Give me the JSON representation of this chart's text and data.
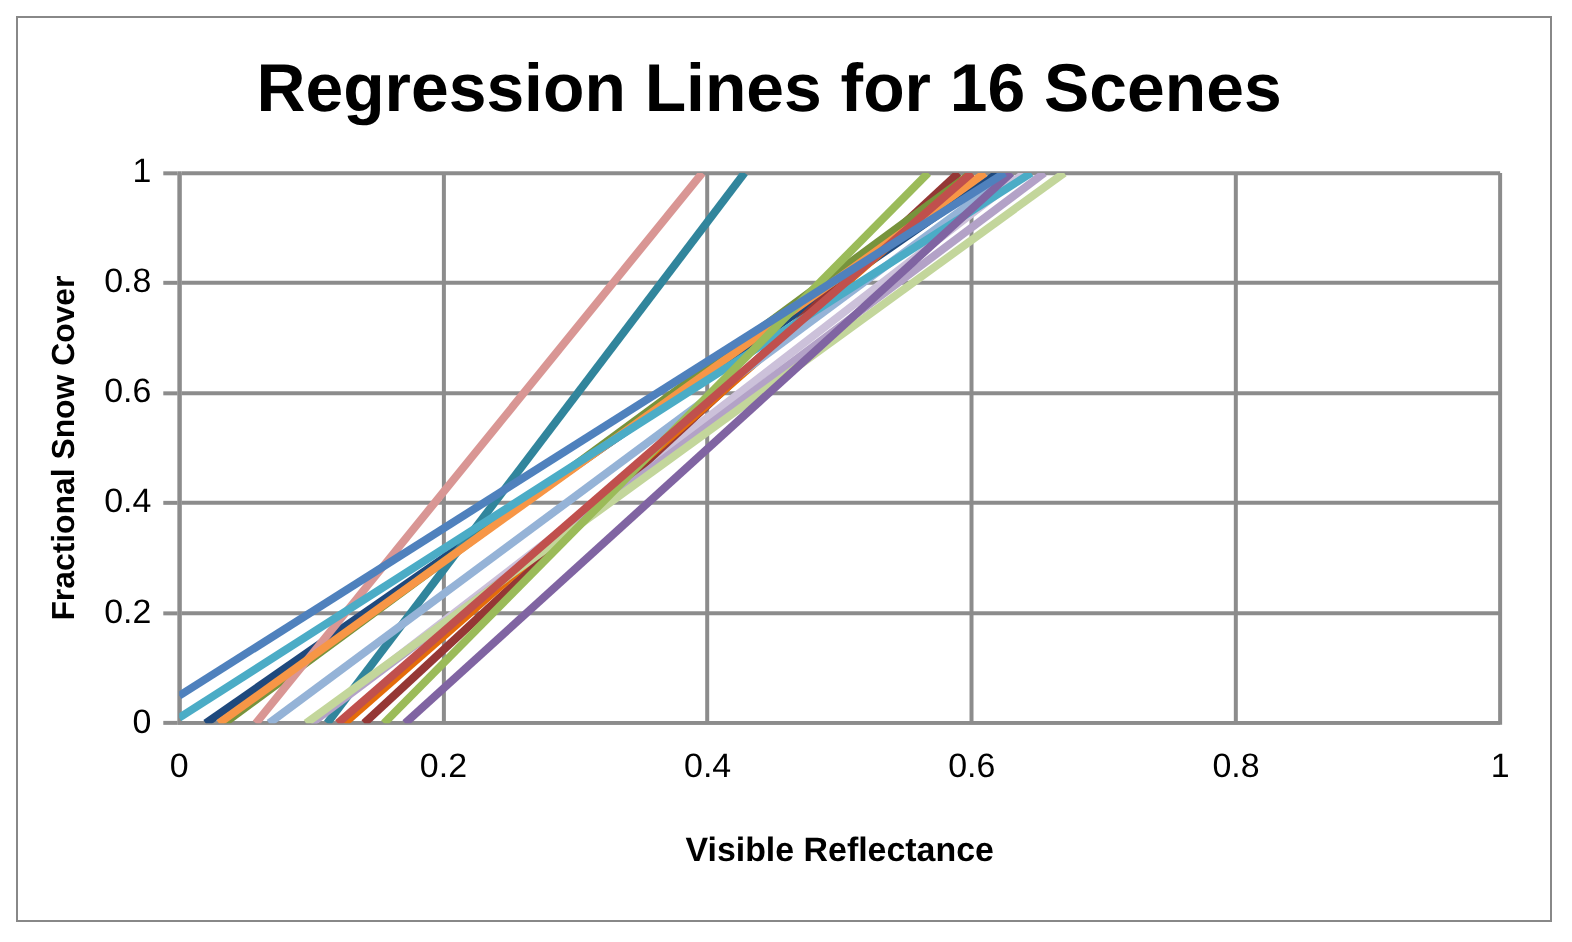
{
  "chart_data": {
    "type": "line",
    "title": "Regression Lines for 16 Scenes",
    "xlabel": "Visible Reflectance",
    "ylabel": "Fractional Snow Cover",
    "xlim": [
      0,
      1
    ],
    "ylim": [
      0,
      1
    ],
    "xticks": [
      0,
      0.2,
      0.4,
      0.6,
      0.8,
      1
    ],
    "yticks": [
      0,
      0.2,
      0.4,
      0.6,
      0.8,
      1
    ],
    "grid": true,
    "legend": false,
    "marker": "none",
    "line_style": "solid",
    "series": [
      {
        "color": "#4f81bd",
        "x": [
          0,
          0.625
        ],
        "values": [
          0.05,
          1
        ]
      },
      {
        "color": "#c0504d",
        "x": [
          0.12,
          0.6
        ],
        "values": [
          0,
          1
        ]
      },
      {
        "color": "#9bbb59",
        "x": [
          0.155,
          0.567
        ],
        "values": [
          0,
          1
        ]
      },
      {
        "color": "#8064a2",
        "x": [
          0.171,
          0.63
        ],
        "values": [
          0,
          1
        ]
      },
      {
        "color": "#4bacc6",
        "x": [
          0,
          0.645
        ],
        "values": [
          0.01,
          1
        ]
      },
      {
        "color": "#f79646",
        "x": [
          0.03,
          0.61
        ],
        "values": [
          0,
          1
        ]
      },
      {
        "color": "#95b3d7",
        "x": [
          0.068,
          0.63
        ],
        "values": [
          0,
          1
        ]
      },
      {
        "color": "#d99694",
        "x": [
          0.058,
          0.396
        ],
        "values": [
          0,
          1
        ]
      },
      {
        "color": "#c3d69b",
        "x": [
          0.096,
          0.67
        ],
        "values": [
          0,
          1
        ]
      },
      {
        "color": "#b3a2c7",
        "x": [
          0.1,
          0.655
        ],
        "values": [
          0,
          1
        ]
      },
      {
        "color": "#31859c",
        "x": [
          0.112,
          0.428
        ],
        "values": [
          0,
          1
        ]
      },
      {
        "color": "#e46c0a",
        "x": [
          0.125,
          0.6
        ],
        "values": [
          0,
          1
        ]
      },
      {
        "color": "#77933c",
        "x": [
          0.034,
          0.6
        ],
        "values": [
          0,
          1
        ]
      },
      {
        "color": "#953735",
        "x": [
          0.14,
          0.59
        ],
        "values": [
          0,
          1
        ]
      },
      {
        "color": "#1f497d",
        "x": [
          0.02,
          0.62
        ],
        "values": [
          0,
          1
        ]
      },
      {
        "color": "#ccc1da",
        "x": [
          0.1,
          0.64
        ],
        "values": [
          0,
          1
        ]
      }
    ]
  }
}
